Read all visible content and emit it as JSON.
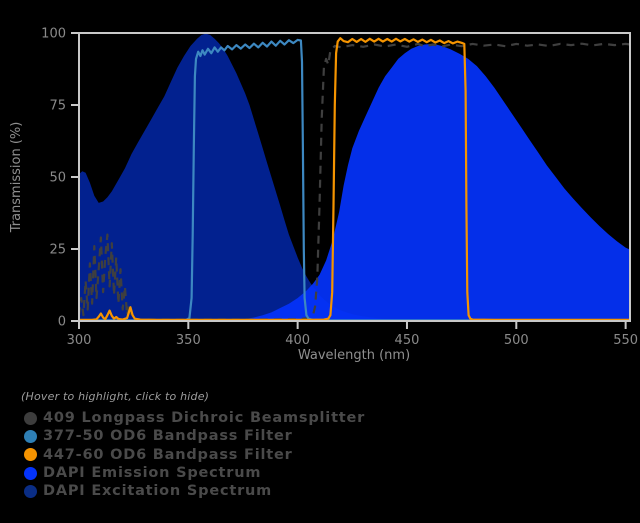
{
  "chart_data": {
    "type": "area",
    "title": "",
    "xlabel": "Wavelength (nm)",
    "ylabel": "Transmission (%)",
    "xlim": [
      300,
      552
    ],
    "ylim": [
      0,
      100
    ],
    "x_ticks": [
      300,
      350,
      400,
      450,
      500,
      550
    ],
    "y_ticks": [
      0,
      25,
      50,
      75,
      100
    ],
    "grid": "off",
    "frame_color": "#c9c9c9",
    "background": "#000000",
    "legend_position": "below-left",
    "series": [
      {
        "name": "DAPI Excitation Spectrum",
        "type": "area",
        "color": "#02218f",
        "fill_opacity": 1,
        "points": [
          [
            300,
            51
          ],
          [
            301.5,
            52
          ],
          [
            303,
            51.5
          ],
          [
            305,
            48
          ],
          [
            307,
            43.5
          ],
          [
            309,
            41
          ],
          [
            311,
            41.5
          ],
          [
            313,
            43
          ],
          [
            315,
            45
          ],
          [
            318,
            49
          ],
          [
            321,
            53
          ],
          [
            324,
            58
          ],
          [
            327,
            62
          ],
          [
            330,
            66
          ],
          [
            333,
            70
          ],
          [
            336,
            74
          ],
          [
            339,
            78
          ],
          [
            342,
            83
          ],
          [
            345,
            88
          ],
          [
            348,
            92
          ],
          [
            351,
            95.5
          ],
          [
            354,
            98
          ],
          [
            356,
            99.3
          ],
          [
            358,
            99.8
          ],
          [
            360,
            99.3
          ],
          [
            362,
            98
          ],
          [
            364,
            96.5
          ],
          [
            366,
            94.5
          ],
          [
            368,
            92
          ],
          [
            370,
            89
          ],
          [
            372,
            86
          ],
          [
            374,
            82.5
          ],
          [
            376,
            79
          ],
          [
            378,
            75
          ],
          [
            380,
            70
          ],
          [
            382,
            65
          ],
          [
            384,
            60
          ],
          [
            386,
            55
          ],
          [
            388,
            50
          ],
          [
            390,
            45
          ],
          [
            392,
            40
          ],
          [
            394,
            35
          ],
          [
            396,
            30
          ],
          [
            398,
            26
          ],
          [
            400,
            22
          ],
          [
            402,
            18.5
          ],
          [
            404,
            15.5
          ],
          [
            406,
            13
          ],
          [
            408,
            11
          ],
          [
            410,
            9
          ],
          [
            412,
            7.5
          ],
          [
            414,
            6.2
          ],
          [
            416,
            5.2
          ],
          [
            418,
            4.3
          ],
          [
            420,
            3.6
          ],
          [
            423,
            2.8
          ],
          [
            426,
            2.2
          ],
          [
            430,
            1.6
          ],
          [
            434,
            1.2
          ],
          [
            438,
            0.8
          ],
          [
            442,
            0.6
          ],
          [
            446,
            0.4
          ],
          [
            450,
            0.3
          ],
          [
            455,
            0.2
          ],
          [
            460,
            0.1
          ],
          [
            465,
            0.05
          ],
          [
            470,
            0
          ]
        ]
      },
      {
        "name": "DAPI Emission Spectrum",
        "type": "area",
        "color": "#0433fb",
        "fill_opacity": 0.93,
        "points": [
          [
            368,
            0
          ],
          [
            372,
            0.3
          ],
          [
            376,
            0.7
          ],
          [
            380,
            1.2
          ],
          [
            384,
            2
          ],
          [
            388,
            3
          ],
          [
            392,
            4.5
          ],
          [
            396,
            6
          ],
          [
            400,
            8
          ],
          [
            404,
            10.5
          ],
          [
            407,
            13
          ],
          [
            410,
            16
          ],
          [
            413,
            21
          ],
          [
            416,
            28
          ],
          [
            419,
            38
          ],
          [
            421,
            47
          ],
          [
            423,
            54
          ],
          [
            425,
            60
          ],
          [
            428,
            66
          ],
          [
            431,
            71
          ],
          [
            434,
            76
          ],
          [
            437,
            81
          ],
          [
            440,
            85
          ],
          [
            443,
            88
          ],
          [
            446,
            91
          ],
          [
            449,
            93
          ],
          [
            452,
            94.5
          ],
          [
            455,
            95.5
          ],
          [
            458,
            96
          ],
          [
            462,
            96.2
          ],
          [
            466,
            95.5
          ],
          [
            470,
            94.3
          ],
          [
            474,
            92.8
          ],
          [
            478,
            91
          ],
          [
            482,
            88.5
          ],
          [
            486,
            85
          ],
          [
            490,
            81
          ],
          [
            494,
            76.5
          ],
          [
            498,
            72
          ],
          [
            502,
            67.5
          ],
          [
            506,
            63
          ],
          [
            510,
            58.5
          ],
          [
            514,
            54
          ],
          [
            518,
            50
          ],
          [
            522,
            46
          ],
          [
            526,
            42.5
          ],
          [
            530,
            39.2
          ],
          [
            534,
            36
          ],
          [
            538,
            33
          ],
          [
            542,
            30.2
          ],
          [
            546,
            27.7
          ],
          [
            550,
            25.5
          ],
          [
            552,
            24.8
          ]
        ]
      },
      {
        "name": "409 Longpass Dichroic Beamsplitter",
        "type": "line",
        "color": "#3f3f3f",
        "dash": "8 6",
        "width": 2.2,
        "points": [
          [
            300,
            2
          ],
          [
            301,
            8
          ],
          [
            302,
            2
          ],
          [
            303,
            14
          ],
          [
            304,
            4
          ],
          [
            305,
            20
          ],
          [
            306,
            6
          ],
          [
            307,
            26
          ],
          [
            308,
            8
          ],
          [
            309,
            18
          ],
          [
            310,
            29
          ],
          [
            311,
            10
          ],
          [
            312,
            22
          ],
          [
            313,
            30
          ],
          [
            314,
            12
          ],
          [
            315,
            27
          ],
          [
            316,
            9
          ],
          [
            317,
            22
          ],
          [
            318,
            6
          ],
          [
            319,
            18
          ],
          [
            320,
            4
          ],
          [
            321,
            12
          ],
          [
            322,
            2
          ],
          [
            323,
            6
          ],
          [
            324,
            1
          ],
          [
            326,
            0.5
          ],
          [
            340,
            0.5
          ],
          [
            360,
            0.5
          ],
          [
            380,
            0.5
          ],
          [
            400,
            0.6
          ],
          [
            405,
            1
          ],
          [
            407,
            2
          ],
          [
            408,
            5
          ],
          [
            409,
            15
          ],
          [
            410,
            40
          ],
          [
            411,
            70
          ],
          [
            412,
            88
          ],
          [
            413,
            91
          ],
          [
            414,
            89
          ],
          [
            415,
            94
          ],
          [
            417,
            95.5
          ],
          [
            420,
            95
          ],
          [
            425,
            95.8
          ],
          [
            430,
            95.2
          ],
          [
            435,
            96
          ],
          [
            440,
            95.3
          ],
          [
            445,
            96
          ],
          [
            450,
            95.2
          ],
          [
            455,
            96.2
          ],
          [
            458,
            95.4
          ],
          [
            462,
            96
          ],
          [
            466,
            95.3
          ],
          [
            470,
            96
          ],
          [
            475,
            95.4
          ],
          [
            480,
            96.2
          ],
          [
            485,
            95.6
          ],
          [
            490,
            96
          ],
          [
            495,
            95.4
          ],
          [
            500,
            96.2
          ],
          [
            505,
            95.6
          ],
          [
            510,
            96
          ],
          [
            515,
            95.5
          ],
          [
            520,
            96.2
          ],
          [
            525,
            95.8
          ],
          [
            530,
            96.3
          ],
          [
            535,
            95.7
          ],
          [
            540,
            96.2
          ],
          [
            545,
            95.8
          ],
          [
            550,
            96.2
          ],
          [
            552,
            96
          ]
        ]
      },
      {
        "name": "377-50 OD6 Bandpass Filter",
        "type": "line",
        "color": "#3d88c1",
        "width": 2.2,
        "points": [
          [
            300,
            0.2
          ],
          [
            345,
            0.2
          ],
          [
            349,
            0.3
          ],
          [
            350.5,
            1
          ],
          [
            351.5,
            8
          ],
          [
            352,
            30
          ],
          [
            352.5,
            60
          ],
          [
            353,
            85
          ],
          [
            353.5,
            91
          ],
          [
            354.5,
            93.5
          ],
          [
            355.5,
            92
          ],
          [
            356.5,
            94
          ],
          [
            357.5,
            92.5
          ],
          [
            359,
            94.5
          ],
          [
            360.5,
            93
          ],
          [
            362,
            95
          ],
          [
            363.5,
            93.5
          ],
          [
            365,
            95
          ],
          [
            366.5,
            94
          ],
          [
            368,
            95.5
          ],
          [
            370,
            94.3
          ],
          [
            372,
            95.8
          ],
          [
            374,
            94.6
          ],
          [
            376,
            96
          ],
          [
            378,
            94.8
          ],
          [
            380,
            96.3
          ],
          [
            382,
            95
          ],
          [
            384,
            96.6
          ],
          [
            386,
            95.3
          ],
          [
            388,
            97
          ],
          [
            390,
            95.6
          ],
          [
            392,
            97.3
          ],
          [
            394,
            96
          ],
          [
            396,
            97.5
          ],
          [
            398,
            96.5
          ],
          [
            400,
            97.6
          ],
          [
            401.5,
            97.4
          ],
          [
            402,
            90
          ],
          [
            402.4,
            60
          ],
          [
            402.8,
            25
          ],
          [
            403.2,
            8
          ],
          [
            404,
            2
          ],
          [
            405,
            0.8
          ],
          [
            407,
            0.3
          ],
          [
            410,
            0.2
          ],
          [
            552,
            0.2
          ]
        ]
      },
      {
        "name": "447-60 OD6 Bandpass Filter",
        "type": "line",
        "color": "#f59400",
        "width": 2.2,
        "points": [
          [
            300,
            0.4
          ],
          [
            306,
            0.4
          ],
          [
            308,
            0.6
          ],
          [
            309,
            1.5
          ],
          [
            310,
            2.6
          ],
          [
            311,
            1.2
          ],
          [
            312,
            0.6
          ],
          [
            313,
            2
          ],
          [
            314,
            3.6
          ],
          [
            315,
            1.8
          ],
          [
            316,
            0.8
          ],
          [
            317,
            1.4
          ],
          [
            318,
            0.7
          ],
          [
            320,
            0.5
          ],
          [
            322,
            1
          ],
          [
            323.5,
            4.8
          ],
          [
            324.5,
            2
          ],
          [
            325.5,
            0.8
          ],
          [
            328,
            0.5
          ],
          [
            335,
            0.4
          ],
          [
            360,
            0.4
          ],
          [
            390,
            0.4
          ],
          [
            405,
            0.4
          ],
          [
            412,
            0.5
          ],
          [
            414,
            0.8
          ],
          [
            415,
            2
          ],
          [
            415.8,
            10
          ],
          [
            416.4,
            40
          ],
          [
            417,
            75
          ],
          [
            417.6,
            93
          ],
          [
            418.3,
            97
          ],
          [
            419.5,
            98.2
          ],
          [
            421,
            97.2
          ],
          [
            423,
            96.8
          ],
          [
            425,
            97.9
          ],
          [
            427,
            96.9
          ],
          [
            429,
            97.9
          ],
          [
            431,
            96.9
          ],
          [
            433,
            98
          ],
          [
            435,
            97
          ],
          [
            437,
            98
          ],
          [
            439,
            97
          ],
          [
            441,
            97.9
          ],
          [
            443,
            97
          ],
          [
            445,
            98
          ],
          [
            447,
            97.1
          ],
          [
            449,
            97.9
          ],
          [
            451,
            97
          ],
          [
            453,
            97.8
          ],
          [
            455,
            96.9
          ],
          [
            457,
            97.7
          ],
          [
            459,
            96.8
          ],
          [
            461,
            97.6
          ],
          [
            463,
            96.7
          ],
          [
            465,
            97.4
          ],
          [
            467,
            96.5
          ],
          [
            469,
            97.2
          ],
          [
            471,
            96.4
          ],
          [
            473,
            97
          ],
          [
            475,
            96.6
          ],
          [
            476.2,
            96.2
          ],
          [
            476.8,
            80
          ],
          [
            477.2,
            40
          ],
          [
            477.6,
            10
          ],
          [
            478.2,
            2
          ],
          [
            479,
            0.8
          ],
          [
            480,
            0.5
          ],
          [
            490,
            0.4
          ],
          [
            510,
            0.4
          ],
          [
            530,
            0.4
          ],
          [
            552,
            0.4
          ]
        ]
      }
    ]
  },
  "legend": {
    "hint": "(Hover to highlight, click to hide)",
    "items": [
      {
        "label": "409 Longpass Dichroic Beamsplitter",
        "color": "#3d3d3d"
      },
      {
        "label": "377-50 OD6 Bandpass Filter",
        "color": "#2e7fb5"
      },
      {
        "label": "447-60 OD6 Bandpass Filter",
        "color": "#f59300"
      },
      {
        "label": "DAPI Emission Spectrum",
        "color": "#0433fb"
      },
      {
        "label": "DAPI Excitation Spectrum",
        "color": "#0a2d85"
      }
    ]
  }
}
